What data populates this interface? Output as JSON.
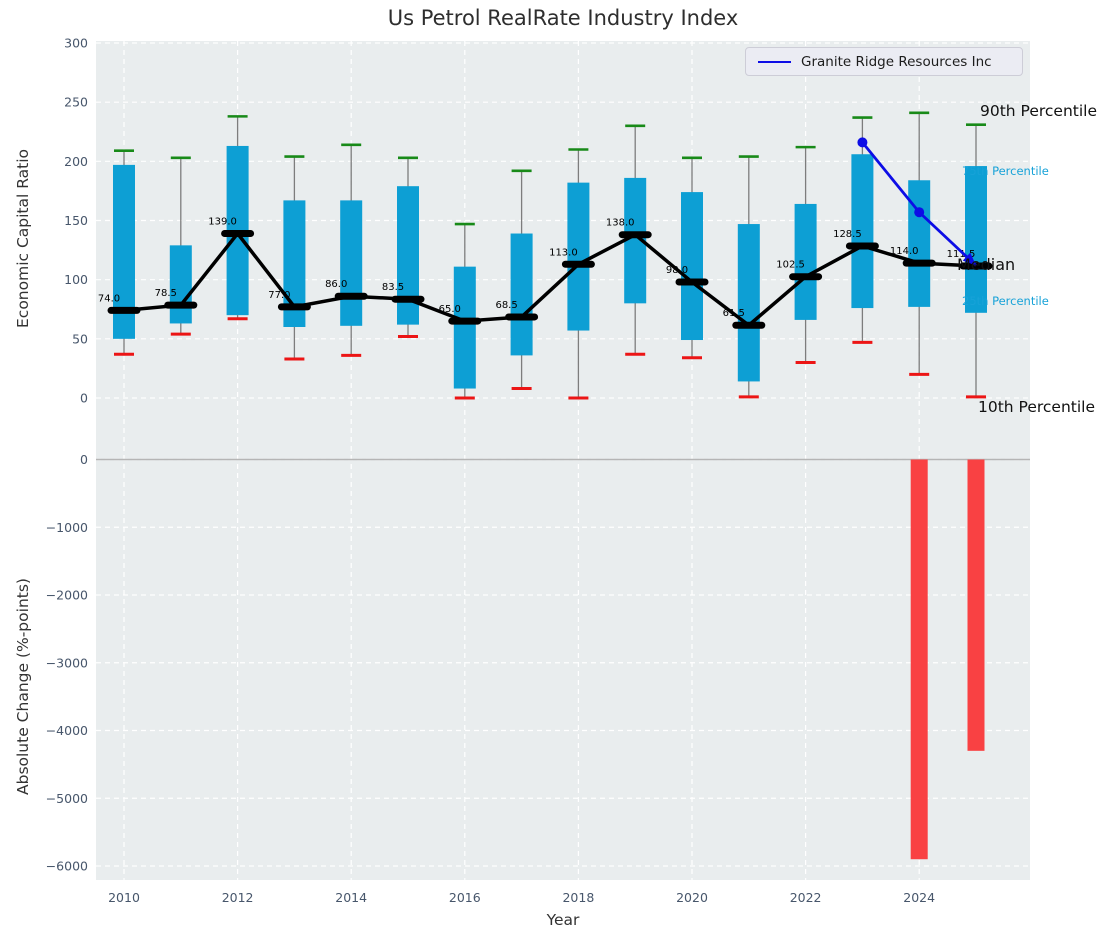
{
  "title": "Us Petrol RealRate Industry Index",
  "legend": {
    "label": "Granite Ridge Resources Inc"
  },
  "annotations": {
    "p90": "90th Percentile",
    "p75": "75th Percentile",
    "median": "Median",
    "p25": "25th Percentile",
    "p10": "10th Percentile"
  },
  "colors": {
    "box": "#0d9fd4",
    "whisker": "#7d7d7d",
    "cap_top": "#188a18",
    "cap_bottom": "#ec1515",
    "median_line": "#000000",
    "company_line": "#0d0de6",
    "bar_negative": "#f94143",
    "plot_bg": "#e9edee",
    "grid": "#ffffff",
    "tick": "#47566b",
    "zero_line": "#b5b5b5",
    "annotation_cyan": "#17a2d8",
    "median_label": "#000000"
  },
  "chart_data": [
    {
      "type": "boxplot",
      "title": "Us Petrol RealRate Industry Index",
      "ylabel": "Economic Capital Ratio",
      "xlabel": "Year",
      "ylim": [
        -48,
        300
      ],
      "yticks": [
        300,
        250,
        200,
        150,
        100,
        50,
        0
      ],
      "xticks": [
        2010,
        2012,
        2014,
        2016,
        2018,
        2020,
        2022,
        2024
      ],
      "grid": true,
      "legend_position": "upper right",
      "years": [
        2010,
        2011,
        2012,
        2013,
        2014,
        2015,
        2016,
        2017,
        2018,
        2019,
        2020,
        2021,
        2022,
        2023,
        2024,
        2025
      ],
      "series": [
        {
          "name": "10th Percentile",
          "values": [
            37,
            54,
            67,
            33,
            36,
            52,
            0,
            8,
            0,
            37,
            34,
            1,
            30,
            47,
            20,
            1
          ]
        },
        {
          "name": "25th Percentile",
          "values": [
            50,
            63,
            70,
            60,
            61,
            62,
            8,
            36,
            57,
            80,
            49,
            14,
            66,
            76,
            77,
            72
          ]
        },
        {
          "name": "Median",
          "values": [
            74.0,
            78.5,
            139.0,
            77.0,
            86.0,
            83.5,
            65.0,
            68.5,
            113.0,
            138.0,
            98.0,
            61.5,
            102.5,
            128.5,
            114.0,
            111.5
          ]
        },
        {
          "name": "75th Percentile",
          "values": [
            197,
            129,
            213,
            167,
            167,
            179,
            111,
            139,
            182,
            186,
            174,
            147,
            164,
            206,
            184,
            196
          ]
        },
        {
          "name": "90th Percentile",
          "values": [
            209,
            203,
            238,
            204,
            214,
            203,
            147,
            192,
            210,
            230,
            203,
            204,
            212,
            237,
            241,
            231
          ]
        }
      ],
      "median_labels": [
        "74.0",
        "78.5",
        "139.0",
        "77.0",
        "86.0",
        "83.5",
        "65.0",
        "68.5",
        "113.0",
        "138.0",
        "98.0",
        "61.5",
        "102.5",
        "128.5",
        "114.0",
        "111.5"
      ],
      "company_line": {
        "name": "Granite Ridge Resources Inc",
        "x": [
          2023,
          2024,
          2025
        ],
        "y": [
          216,
          157,
          112
        ]
      }
    },
    {
      "type": "bar",
      "ylabel": "Absolute Change (%-points)",
      "xlabel": "Year",
      "ylim": [
        -6300,
        70
      ],
      "yticks": [
        0,
        -1000,
        -2000,
        -3000,
        -4000,
        -5000,
        -6000
      ],
      "xticks": [
        2010,
        2012,
        2014,
        2016,
        2018,
        2020,
        2022,
        2024
      ],
      "grid": true,
      "bars": [
        {
          "year": 2024,
          "value": -5900
        },
        {
          "year": 2025,
          "value": -4300
        }
      ]
    }
  ]
}
